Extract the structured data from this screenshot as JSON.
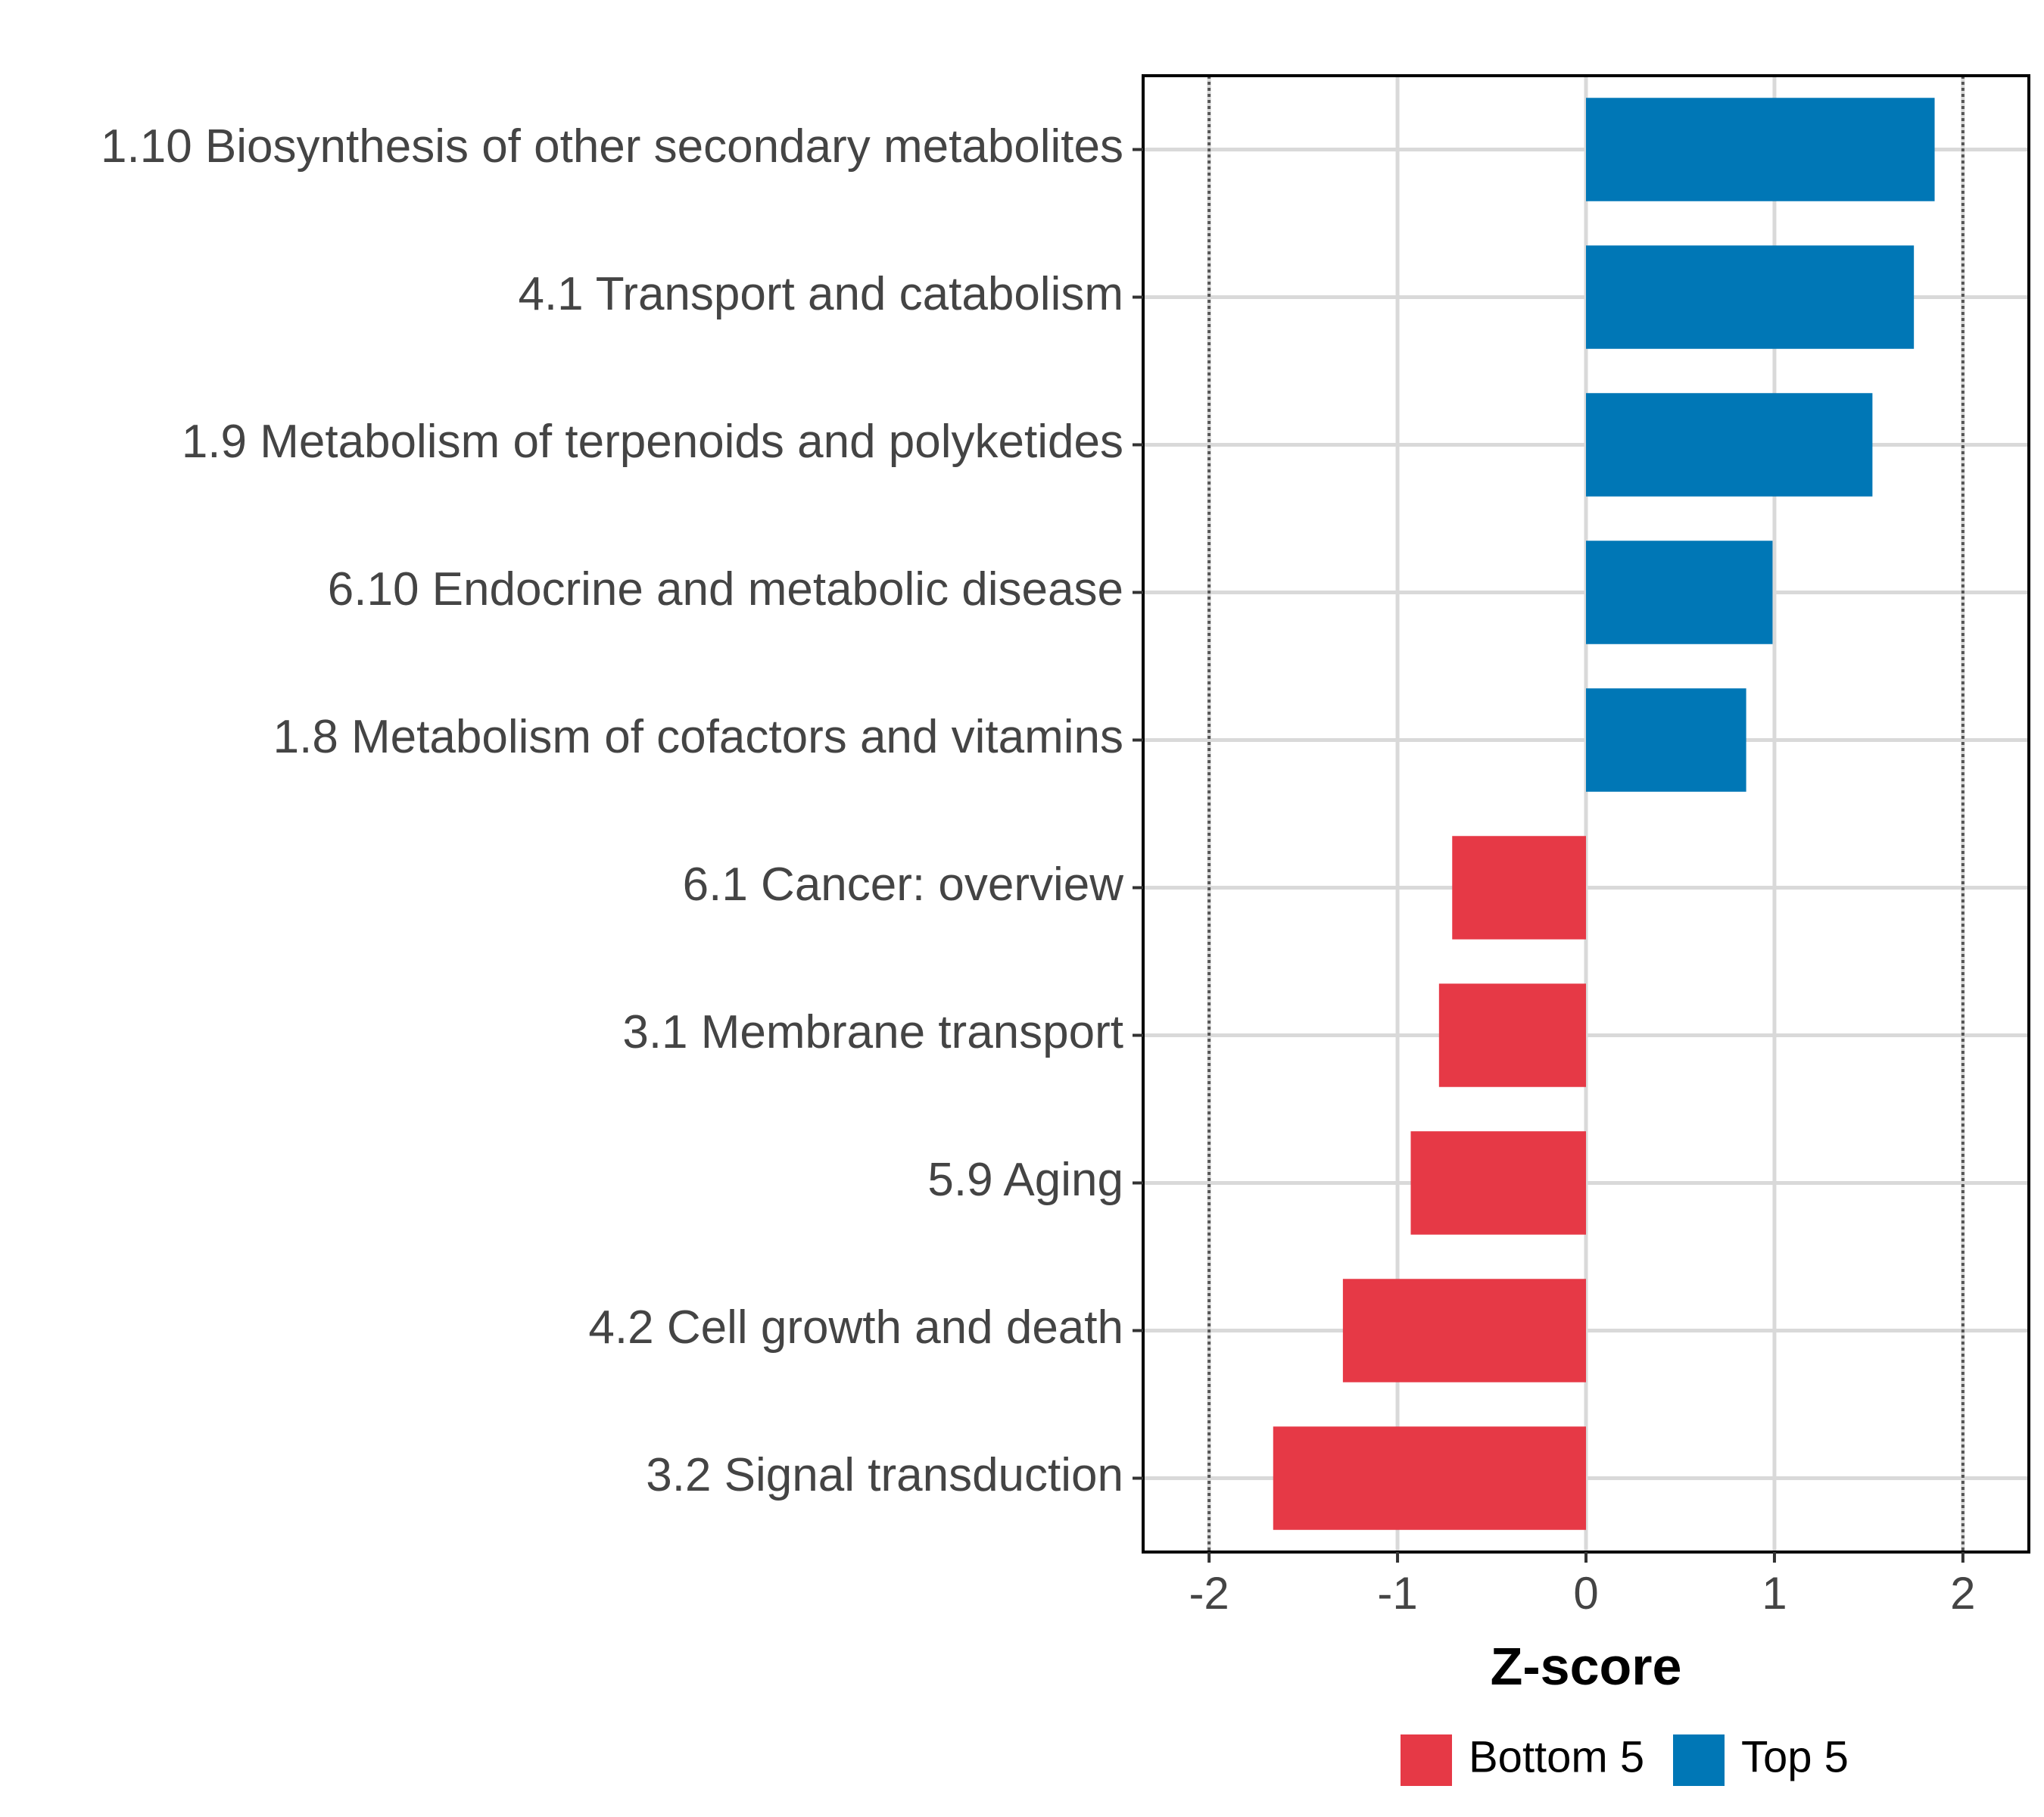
{
  "chart_data": {
    "type": "bar",
    "orientation": "horizontal",
    "xlabel": "Z-score",
    "ylabel": "",
    "xlim": [
      -2.35,
      2.35
    ],
    "xticks": [
      -2,
      -1,
      0,
      1,
      2
    ],
    "reference_lines": [
      -2,
      2
    ],
    "grid": true,
    "categories": [
      "1.10 Biosynthesis of other secondary metabolites",
      "4.1 Transport and catabolism",
      "1.9 Metabolism of terpenoids and polyketides",
      "6.10 Endocrine and metabolic disease",
      "1.8 Metabolism of cofactors and vitamins",
      "6.1 Cancer: overview",
      "3.1 Membrane transport",
      "5.9 Aging",
      "4.2 Cell growth and death",
      "3.2 Signal transduction"
    ],
    "values": [
      1.85,
      1.74,
      1.52,
      0.99,
      0.85,
      -0.71,
      -0.78,
      -0.93,
      -1.29,
      -1.66
    ],
    "groups": [
      "Top 5",
      "Top 5",
      "Top 5",
      "Top 5",
      "Top 5",
      "Bottom 5",
      "Bottom 5",
      "Bottom 5",
      "Bottom 5",
      "Bottom 5"
    ],
    "legend": {
      "placement": "bottom",
      "entries": [
        {
          "label": "Bottom 5",
          "color": "#e63946"
        },
        {
          "label": "Top 5",
          "color": "#0077b6"
        }
      ]
    }
  }
}
